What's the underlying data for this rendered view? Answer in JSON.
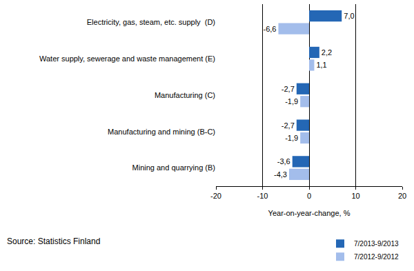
{
  "chart_data": {
    "type": "bar",
    "orientation": "horizontal",
    "categories": [
      "Electricity, gas, steam, etc. supply  (D)",
      "Water supply, sewerage and waste management (E)",
      "Manufacturing (C)",
      "Manufacturing and mining (B-C)",
      "Mining and quarrying (B)"
    ],
    "series": [
      {
        "name": "7/2013-9/2013",
        "color": "#2467b5",
        "values": [
          7.0,
          2.2,
          -2.7,
          -2.7,
          -3.6
        ],
        "value_labels": [
          "7,0",
          "2,2",
          "-2,7",
          "-2,7",
          "-3,6"
        ]
      },
      {
        "name": "7/2012-9/2012",
        "color": "#a3bdeb",
        "values": [
          -6.6,
          1.1,
          -1.9,
          -1.9,
          -4.3
        ],
        "value_labels": [
          "-6,6",
          "1,1",
          "-1,9",
          "-1,9",
          "-4,3"
        ]
      }
    ],
    "x_label": "Year-on-year-change, %",
    "xlim": [
      -20,
      20
    ],
    "xticks": [
      -20,
      -10,
      0,
      10,
      20
    ],
    "grid": true,
    "legend": "bottom right",
    "data_labels": true,
    "annotations": [
      {
        "text": "Source: Statistics Finland"
      }
    ]
  }
}
